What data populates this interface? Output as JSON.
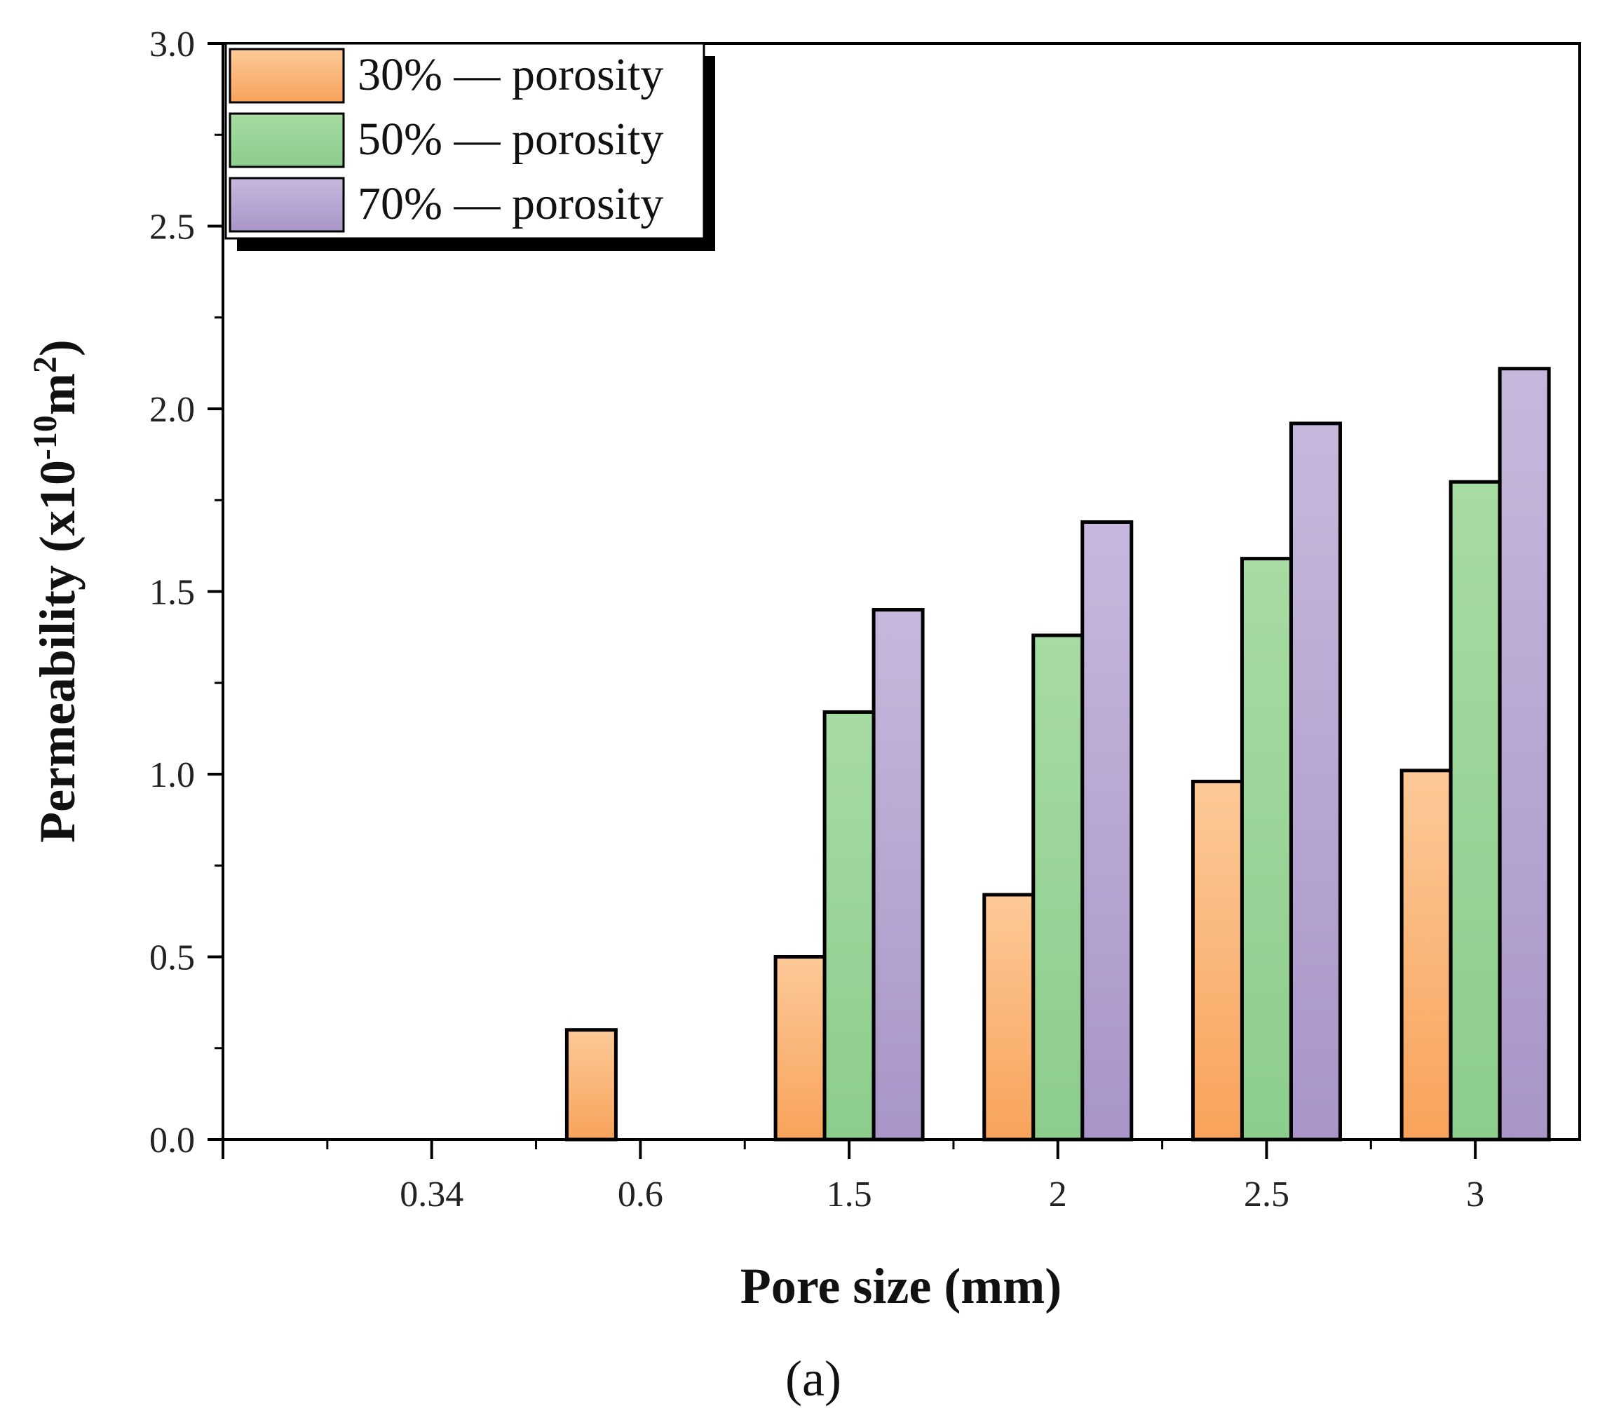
{
  "chart_data": {
    "type": "bar",
    "title": "",
    "xlabel": "Pore size (mm)",
    "ylabel": "Permeability (x10",
    "ylabel_exponent": "-10",
    "ylabel_unit": "m",
    "ylabel_unit_exponent": "2",
    "ylabel_close": ")",
    "categories": [
      "0.34",
      "0.6",
      "1.5",
      "2",
      "2.5",
      "3"
    ],
    "series": [
      {
        "name": "30% — porosity",
        "color_top": "#fcc997",
        "color_bottom": "#f8a35b",
        "values": [
          0,
          0.3,
          0.5,
          0.67,
          0.98,
          1.01
        ]
      },
      {
        "name": "50% — porosity",
        "color_top": "#a6dba2",
        "color_bottom": "#8ccd8d",
        "values": [
          0,
          0,
          1.17,
          1.38,
          1.59,
          1.8
        ]
      },
      {
        "name": "70% — porosity",
        "color_top": "#c6b8dc",
        "color_bottom": "#a995c8",
        "values": [
          0,
          0,
          1.45,
          1.69,
          1.96,
          2.11
        ]
      }
    ],
    "ylim": [
      0,
      3.0
    ],
    "yticks": [
      "0.0",
      "0.5",
      "1.0",
      "1.5",
      "2.0",
      "2.5",
      "3.0"
    ],
    "legend_position": "top-left",
    "grid": false
  },
  "panel_label": "(a)"
}
